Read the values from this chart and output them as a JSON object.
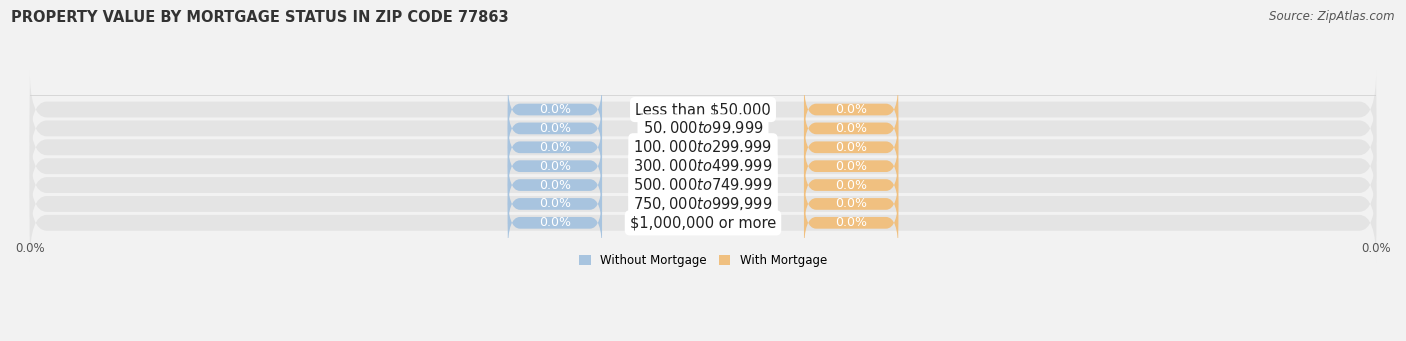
{
  "title": "PROPERTY VALUE BY MORTGAGE STATUS IN ZIP CODE 77863",
  "source": "Source: ZipAtlas.com",
  "categories": [
    "Less than $50,000",
    "$50,000 to $99,999",
    "$100,000 to $299,999",
    "$300,000 to $499,999",
    "$500,000 to $749,999",
    "$750,000 to $999,999",
    "$1,000,000 or more"
  ],
  "without_mortgage": [
    0.0,
    0.0,
    0.0,
    0.0,
    0.0,
    0.0,
    0.0
  ],
  "with_mortgage": [
    0.0,
    0.0,
    0.0,
    0.0,
    0.0,
    0.0,
    0.0
  ],
  "bar_color_without": "#a8c4df",
  "bar_color_with": "#f0c080",
  "bg_color": "#f2f2f2",
  "row_bg_color": "#e4e4e4",
  "xlim": [
    -100.0,
    100.0
  ],
  "title_fontsize": 10.5,
  "source_fontsize": 8.5,
  "tick_fontsize": 8.5,
  "legend_fontsize": 8.5,
  "bar_height": 0.62,
  "category_label_fontsize": 10.5,
  "value_label_fontsize": 9.0
}
